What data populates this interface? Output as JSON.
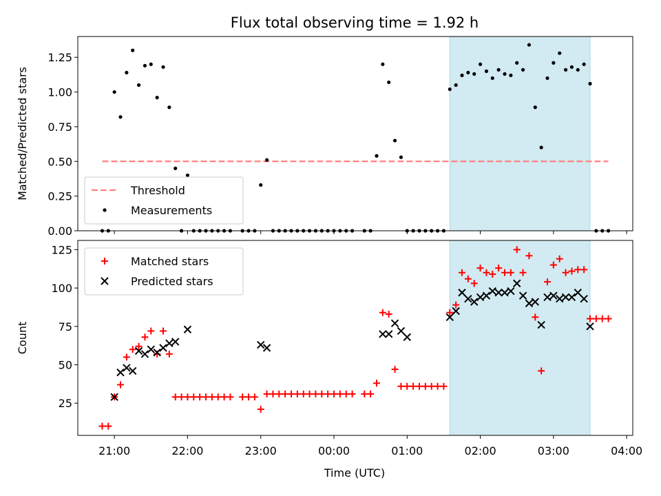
{
  "chart_data": [
    {
      "type": "scatter",
      "title": "Flux total observing time = 1.92 h",
      "xlabel": "",
      "ylabel": "Matched/Predicted stars",
      "xlim": [
        "20:30",
        "04:05"
      ],
      "ylim": [
        0,
        1.4
      ],
      "yticks": [
        "0.00",
        "0.25",
        "0.50",
        "0.75",
        "1.00",
        "1.25"
      ],
      "shaded_interval": {
        "start": "01:35",
        "end": "03:30",
        "color": "#add8e6"
      },
      "legend": {
        "placement": "lower-left",
        "entries": [
          "Threshold",
          "Measurements"
        ]
      },
      "series": [
        {
          "name": "Threshold",
          "style": "dashed-line",
          "color": "#ff7f7f",
          "x": [
            "20:50",
            "03:45"
          ],
          "y": [
            0.5,
            0.5
          ]
        },
        {
          "name": "Measurements",
          "style": "dot",
          "color": "#000000",
          "x": [
            "20:50",
            "20:55",
            "21:00",
            "21:05",
            "21:10",
            "21:15",
            "21:20",
            "21:25",
            "21:30",
            "21:35",
            "21:40",
            "21:45",
            "21:50",
            "21:55",
            "22:00",
            "22:05",
            "22:10",
            "22:15",
            "22:20",
            "22:25",
            "22:30",
            "22:35",
            "22:45",
            "22:50",
            "22:55",
            "23:00",
            "23:05",
            "23:10",
            "23:15",
            "23:20",
            "23:25",
            "23:30",
            "23:35",
            "23:40",
            "23:45",
            "23:50",
            "23:55",
            "00:00",
            "00:05",
            "00:10",
            "00:15",
            "00:25",
            "00:30",
            "00:35",
            "00:40",
            "00:45",
            "00:50",
            "00:55",
            "01:00",
            "01:05",
            "01:10",
            "01:15",
            "01:20",
            "01:25",
            "01:30",
            "01:35",
            "01:40",
            "01:45",
            "01:50",
            "01:55",
            "02:00",
            "02:05",
            "02:10",
            "02:15",
            "02:20",
            "02:25",
            "02:30",
            "02:35",
            "02:40",
            "02:45",
            "02:50",
            "02:55",
            "03:00",
            "03:05",
            "03:10",
            "03:15",
            "03:20",
            "03:25",
            "03:30",
            "03:35",
            "03:40",
            "03:45"
          ],
          "y": [
            0,
            0,
            1.0,
            0.82,
            1.14,
            1.3,
            1.05,
            1.19,
            1.2,
            0.96,
            1.18,
            0.89,
            0.45,
            0,
            0.4,
            0,
            0,
            0,
            0,
            0,
            0,
            0,
            0,
            0,
            0,
            0.33,
            0.51,
            0,
            0,
            0,
            0,
            0,
            0,
            0,
            0,
            0,
            0,
            0,
            0,
            0,
            0,
            0,
            0,
            0.54,
            1.2,
            1.07,
            0.65,
            0.53,
            0,
            0,
            0,
            0,
            0,
            0,
            0,
            1.02,
            1.05,
            1.12,
            1.14,
            1.13,
            1.2,
            1.15,
            1.1,
            1.16,
            1.13,
            1.12,
            1.21,
            1.16,
            1.34,
            0.89,
            0.6,
            1.1,
            1.21,
            1.28,
            1.16,
            1.18,
            1.16,
            1.2,
            1.06,
            0,
            0,
            0
          ]
        }
      ]
    },
    {
      "type": "scatter",
      "title": "",
      "xlabel": "Time (UTC)",
      "ylabel": "Count",
      "xlim": [
        "20:30",
        "04:05"
      ],
      "ylim": [
        4,
        131
      ],
      "yticks": [
        "25",
        "50",
        "75",
        "100",
        "125"
      ],
      "xticks": [
        "21:00",
        "22:00",
        "23:00",
        "00:00",
        "01:00",
        "02:00",
        "03:00",
        "04:00"
      ],
      "shaded_interval": {
        "start": "01:35",
        "end": "03:30",
        "color": "#add8e6"
      },
      "legend": {
        "placement": "upper-left",
        "entries": [
          "Matched stars",
          "Predicted stars"
        ]
      },
      "series": [
        {
          "name": "Matched stars",
          "marker": "+",
          "color": "#ff0000",
          "x": [
            "20:50",
            "20:55",
            "21:00",
            "21:05",
            "21:10",
            "21:15",
            "21:20",
            "21:25",
            "21:30",
            "21:35",
            "21:40",
            "21:45",
            "21:50",
            "21:55",
            "22:00",
            "22:05",
            "22:10",
            "22:15",
            "22:20",
            "22:25",
            "22:30",
            "22:35",
            "22:45",
            "22:50",
            "22:55",
            "23:00",
            "23:05",
            "23:10",
            "23:15",
            "23:20",
            "23:25",
            "23:30",
            "23:35",
            "23:40",
            "23:45",
            "23:50",
            "23:55",
            "00:00",
            "00:05",
            "00:10",
            "00:15",
            "00:25",
            "00:30",
            "00:35",
            "00:40",
            "00:45",
            "00:50",
            "00:55",
            "01:00",
            "01:05",
            "01:10",
            "01:15",
            "01:20",
            "01:25",
            "01:30",
            "01:35",
            "01:40",
            "01:45",
            "01:50",
            "01:55",
            "02:00",
            "02:05",
            "02:10",
            "02:15",
            "02:20",
            "02:25",
            "02:30",
            "02:35",
            "02:40",
            "02:45",
            "02:50",
            "02:55",
            "03:00",
            "03:05",
            "03:10",
            "03:15",
            "03:20",
            "03:25",
            "03:30",
            "03:35",
            "03:40",
            "03:45"
          ],
          "y": [
            10,
            10,
            29,
            37,
            55,
            60,
            62,
            68,
            72,
            57,
            72,
            57,
            29,
            29,
            29,
            29,
            29,
            29,
            29,
            29,
            29,
            29,
            29,
            29,
            29,
            21,
            31,
            31,
            31,
            31,
            31,
            31,
            31,
            31,
            31,
            31,
            31,
            31,
            31,
            31,
            31,
            31,
            31,
            38,
            84,
            83,
            47,
            36,
            36,
            36,
            36,
            36,
            36,
            36,
            36,
            84,
            89,
            110,
            106,
            103,
            113,
            110,
            109,
            113,
            110,
            110,
            125,
            110,
            121,
            81,
            46,
            104,
            115,
            119,
            110,
            111,
            112,
            112,
            80,
            80,
            80,
            80
          ]
        },
        {
          "name": "Predicted stars",
          "marker": "x",
          "color": "#000000",
          "x": [
            "21:00",
            "21:05",
            "21:10",
            "21:15",
            "21:20",
            "21:25",
            "21:30",
            "21:35",
            "21:40",
            "21:45",
            "21:50",
            "22:00",
            "23:00",
            "23:05",
            "00:40",
            "00:45",
            "00:50",
            "00:55",
            "01:00",
            "01:35",
            "01:40",
            "01:45",
            "01:50",
            "01:55",
            "02:00",
            "02:05",
            "02:10",
            "02:15",
            "02:20",
            "02:25",
            "02:30",
            "02:35",
            "02:40",
            "02:45",
            "02:50",
            "02:55",
            "03:00",
            "03:05",
            "03:10",
            "03:15",
            "03:20",
            "03:25",
            "03:30"
          ],
          "y": [
            29,
            45,
            48,
            46,
            59,
            57,
            60,
            58,
            61,
            64,
            65,
            73,
            63,
            61,
            70,
            70,
            77,
            72,
            68,
            81,
            85,
            97,
            93,
            91,
            94,
            95,
            98,
            97,
            97,
            98,
            103,
            95,
            90,
            91,
            76,
            94,
            95,
            93,
            94,
            94,
            97,
            93,
            75
          ]
        }
      ]
    }
  ]
}
